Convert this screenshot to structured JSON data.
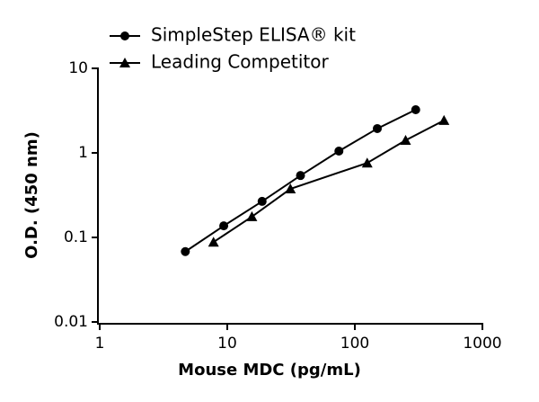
{
  "chart_data": {
    "type": "scatter",
    "xlabel": "Mouse MDC (pg/mL)",
    "ylabel": "O.D. (450 nm)",
    "xscale": "log",
    "yscale": "log",
    "xlim": [
      1,
      1000
    ],
    "xticks": [
      1,
      10,
      100,
      1000
    ],
    "ylim": [
      0.01,
      10
    ],
    "yticks": [
      0.01,
      0.1,
      1,
      10
    ],
    "legend": "top-left",
    "series": [
      {
        "name": "SimpleStep ELISA® kit",
        "color": "#000000",
        "marker": "circle",
        "x": [
          4.69,
          9.38,
          18.75,
          37.5,
          75,
          150,
          300
        ],
        "values": [
          0.068,
          0.137,
          0.267,
          0.54,
          1.05,
          1.94,
          3.24
        ]
      },
      {
        "name": "Leading Competitor",
        "color": "#000000",
        "marker": "triangle",
        "x": [
          7.8,
          15.6,
          31.25,
          125,
          250,
          500
        ],
        "values": [
          0.088,
          0.176,
          0.375,
          0.76,
          1.41,
          2.42
        ]
      }
    ]
  }
}
